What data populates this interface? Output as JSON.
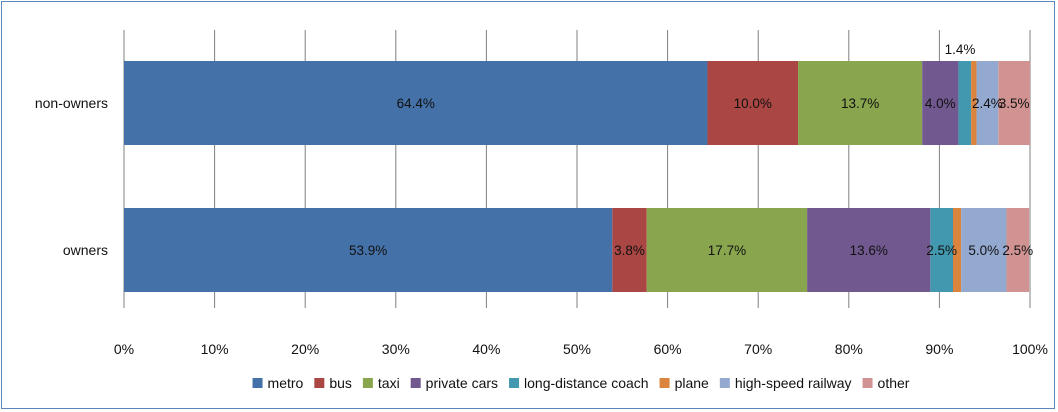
{
  "chart_data": {
    "type": "bar",
    "orientation": "horizontal",
    "stacked": "percent",
    "categories": [
      "non-owners",
      "owners"
    ],
    "series": [
      {
        "name": "metro",
        "color": "#4472a8",
        "values": [
          64.4,
          53.9
        ],
        "labels": [
          "64.4%",
          "53.9%"
        ]
      },
      {
        "name": "bus",
        "color": "#aa4643",
        "values": [
          10.0,
          3.8
        ],
        "labels": [
          "10.0%",
          "3.8%"
        ]
      },
      {
        "name": "taxi",
        "color": "#89a54e",
        "values": [
          13.7,
          17.7
        ],
        "labels": [
          "13.7%",
          "17.7%"
        ]
      },
      {
        "name": "private cars",
        "color": "#71588f",
        "values": [
          4.0,
          13.6
        ],
        "labels": [
          "4.0%",
          "13.6%"
        ]
      },
      {
        "name": "long-distance coach",
        "color": "#4198af",
        "values": [
          1.4,
          2.5
        ],
        "labels": [
          "1.4%",
          "2.5%"
        ]
      },
      {
        "name": "plane",
        "color": "#db843d",
        "values": [
          0.6,
          0.9
        ],
        "labels": [
          "",
          ""
        ]
      },
      {
        "name": "high-speed railway",
        "color": "#93a9cf",
        "values": [
          2.4,
          5.0
        ],
        "labels": [
          "2.4%",
          "5.0%"
        ]
      },
      {
        "name": "other",
        "color": "#d19392",
        "values": [
          3.5,
          2.5
        ],
        "labels": [
          "3.5%",
          "2.5%"
        ]
      }
    ],
    "xlim": [
      0,
      100
    ],
    "xticks": [
      "0%",
      "10%",
      "20%",
      "30%",
      "40%",
      "50%",
      "60%",
      "70%",
      "80%",
      "90%",
      "100%"
    ],
    "grid": "vertical",
    "legend": "bottom",
    "title": "",
    "xlabel": "",
    "ylabel": ""
  }
}
